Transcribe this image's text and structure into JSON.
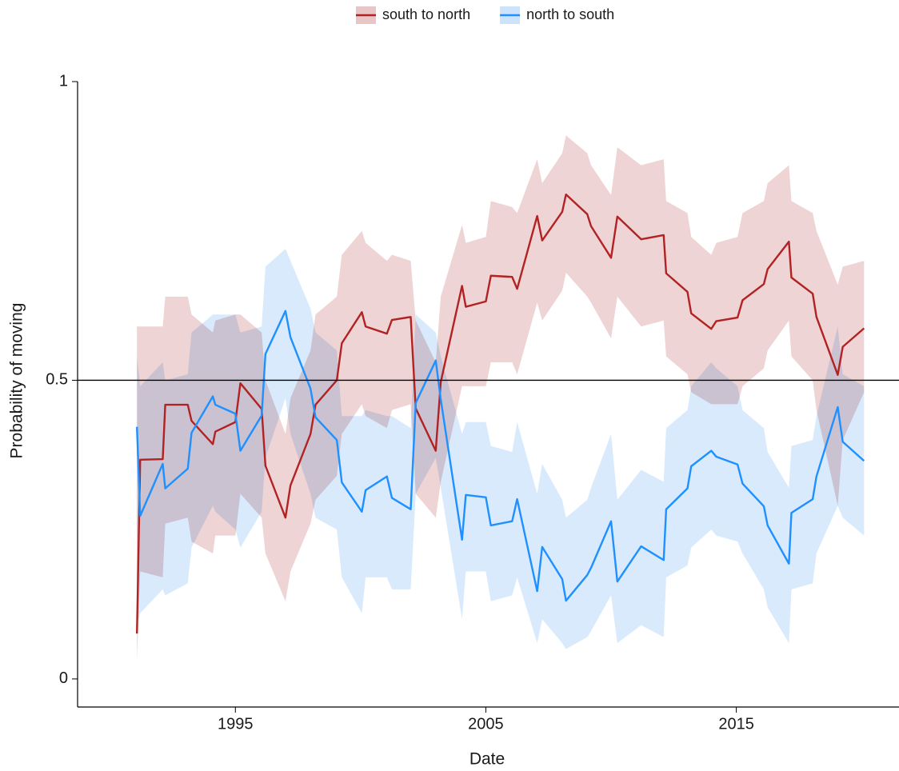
{
  "chart_data": {
    "type": "line",
    "x_label": "Date",
    "y_label": "Probability of moving",
    "legend": "top",
    "xlim": [
      1988.7,
      2021.4
    ],
    "xticks": [
      1995,
      2005,
      2015
    ],
    "ylim": [
      -0.047,
      1
    ],
    "yticks": [
      0,
      0.5,
      1
    ],
    "hline": 0.5,
    "x": [
      1991.07,
      1991.2,
      1992.1,
      1992.2,
      1993.1,
      1993.25,
      1994.1,
      1994.2,
      1995.0,
      1995.2,
      1996.05,
      1996.2,
      1997.0,
      1997.2,
      1998.0,
      1998.2,
      1999.05,
      1999.25,
      2000.05,
      2000.2,
      2001.05,
      2001.25,
      2002.0,
      2002.2,
      2003.0,
      2003.2,
      2004.05,
      2004.2,
      2005.0,
      2005.2,
      2006.05,
      2006.25,
      2007.05,
      2007.25,
      2008.05,
      2008.2,
      2009.05,
      2009.2,
      2010.0,
      2010.25,
      2011.2,
      2012.1,
      2012.2,
      2013.05,
      2013.2,
      2014.0,
      2014.2,
      2015.05,
      2015.25,
      2016.1,
      2016.25,
      2017.1,
      2017.2,
      2018.05,
      2018.2,
      2019.05,
      2019.25,
      2020.1
    ],
    "series": [
      {
        "name": "south to north",
        "color": "#b22222",
        "fill": "#e8c6c6",
        "values": [
          0.076,
          0.367,
          0.368,
          0.459,
          0.459,
          0.432,
          0.393,
          0.414,
          0.43,
          0.495,
          0.452,
          0.357,
          0.27,
          0.324,
          0.41,
          0.459,
          0.5,
          0.562,
          0.614,
          0.59,
          0.578,
          0.601,
          0.606,
          0.453,
          0.382,
          0.497,
          0.658,
          0.623,
          0.632,
          0.675,
          0.673,
          0.653,
          0.775,
          0.734,
          0.782,
          0.811,
          0.778,
          0.758,
          0.705,
          0.774,
          0.736,
          0.743,
          0.679,
          0.648,
          0.612,
          0.586,
          0.599,
          0.605,
          0.634,
          0.661,
          0.686,
          0.732,
          0.672,
          0.645,
          0.606,
          0.509,
          0.556,
          0.587
        ],
        "lower": [
          0.03,
          0.18,
          0.17,
          0.26,
          0.27,
          0.23,
          0.21,
          0.24,
          0.24,
          0.31,
          0.27,
          0.21,
          0.13,
          0.18,
          0.26,
          0.3,
          0.34,
          0.41,
          0.46,
          0.44,
          0.42,
          0.45,
          0.46,
          0.31,
          0.27,
          0.33,
          0.49,
          0.49,
          0.49,
          0.53,
          0.53,
          0.51,
          0.63,
          0.6,
          0.65,
          0.68,
          0.64,
          0.63,
          0.57,
          0.64,
          0.59,
          0.6,
          0.54,
          0.51,
          0.48,
          0.46,
          0.46,
          0.46,
          0.49,
          0.52,
          0.55,
          0.6,
          0.54,
          0.5,
          0.45,
          0.29,
          0.4,
          0.48
        ],
        "upper": [
          0.59,
          0.59,
          0.59,
          0.64,
          0.64,
          0.61,
          0.58,
          0.6,
          0.61,
          0.61,
          0.58,
          0.5,
          0.41,
          0.47,
          0.55,
          0.61,
          0.64,
          0.71,
          0.75,
          0.73,
          0.7,
          0.71,
          0.7,
          0.6,
          0.53,
          0.64,
          0.76,
          0.73,
          0.74,
          0.8,
          0.79,
          0.78,
          0.87,
          0.83,
          0.88,
          0.91,
          0.88,
          0.86,
          0.81,
          0.89,
          0.86,
          0.87,
          0.8,
          0.78,
          0.74,
          0.71,
          0.73,
          0.74,
          0.78,
          0.8,
          0.83,
          0.86,
          0.8,
          0.78,
          0.75,
          0.66,
          0.69,
          0.7
        ]
      },
      {
        "name": "north to south",
        "color": "#1e90ff",
        "fill": "#cce3fb",
        "values": [
          0.422,
          0.273,
          0.36,
          0.319,
          0.352,
          0.412,
          0.473,
          0.459,
          0.444,
          0.382,
          0.441,
          0.544,
          0.616,
          0.572,
          0.486,
          0.438,
          0.4,
          0.329,
          0.28,
          0.316,
          0.339,
          0.303,
          0.284,
          0.462,
          0.533,
          0.468,
          0.233,
          0.308,
          0.304,
          0.257,
          0.264,
          0.301,
          0.147,
          0.221,
          0.167,
          0.131,
          0.174,
          0.186,
          0.264,
          0.163,
          0.222,
          0.199,
          0.284,
          0.319,
          0.356,
          0.382,
          0.372,
          0.359,
          0.327,
          0.289,
          0.257,
          0.193,
          0.278,
          0.301,
          0.339,
          0.455,
          0.397,
          0.365
        ],
        "lower": [
          0.09,
          0.11,
          0.15,
          0.14,
          0.16,
          0.22,
          0.29,
          0.28,
          0.25,
          0.22,
          0.28,
          0.37,
          0.47,
          0.41,
          0.31,
          0.27,
          0.25,
          0.17,
          0.11,
          0.17,
          0.17,
          0.15,
          0.15,
          0.31,
          0.37,
          0.32,
          0.1,
          0.18,
          0.18,
          0.13,
          0.14,
          0.17,
          0.06,
          0.1,
          0.06,
          0.05,
          0.07,
          0.08,
          0.14,
          0.06,
          0.09,
          0.07,
          0.17,
          0.19,
          0.22,
          0.25,
          0.24,
          0.23,
          0.21,
          0.15,
          0.12,
          0.06,
          0.15,
          0.16,
          0.21,
          0.29,
          0.27,
          0.24
        ],
        "upper": [
          0.54,
          0.49,
          0.53,
          0.5,
          0.51,
          0.58,
          0.61,
          0.61,
          0.61,
          0.58,
          0.59,
          0.69,
          0.72,
          0.7,
          0.62,
          0.58,
          0.55,
          0.44,
          0.44,
          0.45,
          0.44,
          0.44,
          0.42,
          0.61,
          0.58,
          0.54,
          0.41,
          0.43,
          0.43,
          0.39,
          0.38,
          0.43,
          0.31,
          0.36,
          0.3,
          0.27,
          0.3,
          0.32,
          0.41,
          0.3,
          0.35,
          0.33,
          0.42,
          0.45,
          0.49,
          0.53,
          0.52,
          0.49,
          0.45,
          0.42,
          0.38,
          0.32,
          0.39,
          0.4,
          0.44,
          0.59,
          0.51,
          0.49
        ]
      }
    ]
  }
}
